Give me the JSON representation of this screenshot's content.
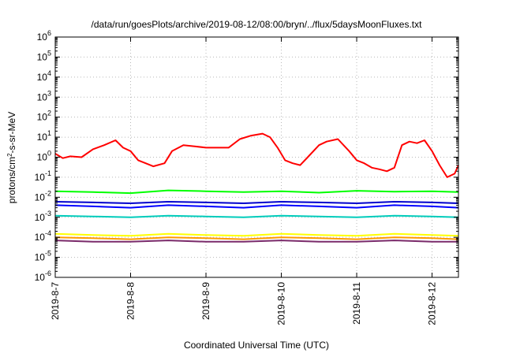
{
  "chart_data": {
    "type": "line",
    "title": "/data/run/goesPlots/archive/2019-08-12/08:00/bryn/../flux/5daysMoonFluxes.txt",
    "xlabel": "Coordinated Universal Time (UTC)",
    "ylabel": "protons/cm²-s-sr-MeV",
    "ylabel_parts": [
      "protons/cm",
      "2",
      "-s-sr-MeV"
    ],
    "yscale": "log",
    "ylim_exp": [
      -6,
      6
    ],
    "ytick_exponents": [
      -6,
      -5,
      -4,
      -3,
      -2,
      -1,
      0,
      1,
      2,
      3,
      4,
      5,
      6
    ],
    "ytick_base": "10",
    "xlim_days": [
      0,
      5.35
    ],
    "xticks": [
      {
        "label": "2019-8-7",
        "day": 0
      },
      {
        "label": "2019-8-8",
        "day": 1
      },
      {
        "label": "2019-8-9",
        "day": 2
      },
      {
        "label": "2019-8-10",
        "day": 3
      },
      {
        "label": "2019-8-11",
        "day": 4
      },
      {
        "label": "2019-8-12",
        "day": 5
      }
    ],
    "grid": true,
    "legend": "none",
    "series": [
      {
        "color": "#ff0000",
        "x": [
          0,
          0.1,
          0.2,
          0.35,
          0.5,
          0.65,
          0.8,
          0.9,
          1.0,
          1.1,
          1.2,
          1.3,
          1.45,
          1.55,
          1.7,
          1.85,
          2.0,
          2.15,
          2.3,
          2.45,
          2.6,
          2.75,
          2.85,
          2.95,
          3.05,
          3.15,
          3.25,
          3.35,
          3.5,
          3.6,
          3.75,
          3.9,
          4.0,
          4.1,
          4.2,
          4.3,
          4.4,
          4.5,
          4.6,
          4.7,
          4.8,
          4.9,
          5.0,
          5.1,
          5.2,
          5.3,
          5.35
        ],
        "y": [
          1.5,
          0.9,
          1.1,
          1.0,
          2.5,
          4.0,
          7.0,
          3.0,
          2.0,
          0.7,
          0.5,
          0.35,
          0.5,
          2.0,
          4.0,
          3.5,
          3.0,
          3.0,
          3.0,
          8.0,
          12.0,
          15.0,
          10.0,
          3.0,
          0.7,
          0.5,
          0.4,
          1.0,
          4.0,
          6.0,
          8.0,
          2.0,
          0.7,
          0.5,
          0.3,
          0.25,
          0.2,
          0.3,
          4.0,
          6.0,
          5.0,
          7.0,
          2.0,
          0.4,
          0.1,
          0.15,
          0.4
        ]
      },
      {
        "color": "#00ff00",
        "x": [
          0,
          0.5,
          1.0,
          1.5,
          2.0,
          2.5,
          3.0,
          3.5,
          4.0,
          4.5,
          5.0,
          5.35
        ],
        "y": [
          0.02,
          0.018,
          0.016,
          0.022,
          0.02,
          0.018,
          0.02,
          0.017,
          0.021,
          0.019,
          0.02,
          0.018
        ]
      },
      {
        "color": "#0000ff",
        "x": [
          0,
          0.5,
          1.0,
          1.5,
          2.0,
          2.5,
          3.0,
          3.5,
          4.0,
          4.5,
          5.0,
          5.35
        ],
        "y": [
          0.004,
          0.0035,
          0.003,
          0.004,
          0.0035,
          0.003,
          0.004,
          0.0035,
          0.003,
          0.004,
          0.0035,
          0.003
        ]
      },
      {
        "color": "#0000cc",
        "x": [
          0,
          0.5,
          1.0,
          1.5,
          2.0,
          2.5,
          3.0,
          3.5,
          4.0,
          4.5,
          5.0,
          5.35
        ],
        "y": [
          0.006,
          0.0055,
          0.005,
          0.006,
          0.0055,
          0.005,
          0.006,
          0.0055,
          0.005,
          0.006,
          0.0055,
          0.005
        ]
      },
      {
        "color": "#00ccbb",
        "x": [
          0,
          0.5,
          1.0,
          1.5,
          2.0,
          2.5,
          3.0,
          3.5,
          4.0,
          4.5,
          5.0,
          5.35
        ],
        "y": [
          0.0012,
          0.0011,
          0.001,
          0.0012,
          0.0011,
          0.001,
          0.0012,
          0.0011,
          0.001,
          0.0012,
          0.0011,
          0.001
        ]
      },
      {
        "color": "#ffff00",
        "x": [
          0,
          0.5,
          1.0,
          1.5,
          2.0,
          2.5,
          3.0,
          3.5,
          4.0,
          4.5,
          5.0,
          5.35
        ],
        "y": [
          0.00015,
          0.00013,
          0.00012,
          0.00015,
          0.00013,
          0.00012,
          0.00015,
          0.00013,
          0.00012,
          0.00015,
          0.00013,
          0.00012
        ]
      },
      {
        "color": "#ff9900",
        "x": [
          0,
          0.5,
          1.0,
          1.5,
          2.0,
          2.5,
          3.0,
          3.5,
          4.0,
          4.5,
          5.0,
          5.35
        ],
        "y": [
          0.0001,
          9e-05,
          8e-05,
          0.0001,
          9e-05,
          8e-05,
          0.0001,
          9e-05,
          8e-05,
          0.0001,
          9e-05,
          8e-05
        ]
      },
      {
        "color": "#7a2a6a",
        "x": [
          0,
          0.5,
          1.0,
          1.5,
          2.0,
          2.5,
          3.0,
          3.5,
          4.0,
          4.5,
          5.0,
          5.35
        ],
        "y": [
          7e-05,
          6e-05,
          6e-05,
          7e-05,
          6e-05,
          6e-05,
          7e-05,
          6e-05,
          6e-05,
          7e-05,
          6e-05,
          6e-05
        ]
      }
    ]
  }
}
